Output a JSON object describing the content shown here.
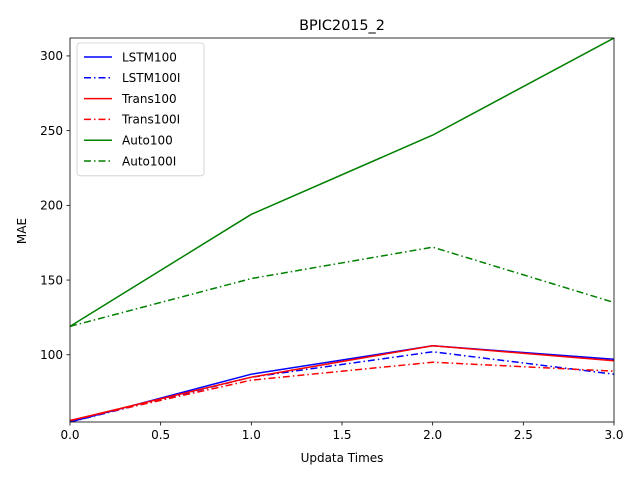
{
  "chart_data": {
    "type": "line",
    "title": "BPIC2015_2",
    "xlabel": "Updata Times",
    "ylabel": "MAE",
    "xlim": [
      0.0,
      3.0
    ],
    "ylim": [
      55,
      312
    ],
    "xticks": [
      "0.0",
      "0.5",
      "1.0",
      "1.5",
      "2.0",
      "2.5",
      "3.0"
    ],
    "xtick_values": [
      0.0,
      0.5,
      1.0,
      1.5,
      2.0,
      2.5,
      3.0
    ],
    "yticks": [
      "100",
      "150",
      "200",
      "250",
      "300"
    ],
    "ytick_values": [
      100,
      150,
      200,
      250,
      300
    ],
    "grid": false,
    "legend_position": "top-left",
    "x": [
      0,
      1,
      2,
      3
    ],
    "series": [
      {
        "name": "LSTM100",
        "values": [
          55,
          87,
          106,
          97
        ],
        "color": "#0000ff",
        "dash": "solid"
      },
      {
        "name": "LSTM100I",
        "values": [
          55,
          85,
          102,
          87
        ],
        "color": "#0000ff",
        "dash": "dashdot"
      },
      {
        "name": "Trans100",
        "values": [
          56,
          85,
          106,
          96
        ],
        "color": "#ff0000",
        "dash": "solid"
      },
      {
        "name": "Trans100I",
        "values": [
          56,
          83,
          95,
          89
        ],
        "color": "#ff0000",
        "dash": "dashdot"
      },
      {
        "name": "Auto100",
        "values": [
          119,
          194,
          247,
          312
        ],
        "color": "#008000",
        "dash": "solid"
      },
      {
        "name": "Auto100I",
        "values": [
          119,
          151,
          172,
          135
        ],
        "color": "#008000",
        "dash": "dashdot"
      }
    ]
  }
}
